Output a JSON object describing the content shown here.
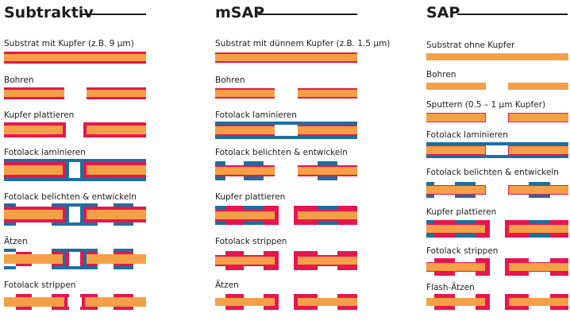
{
  "colors": {
    "copper": "#e6164f",
    "substrate": "#f5a047",
    "photoresist": "#1d6f9f",
    "text": "#1d1d1b"
  },
  "columns": [
    {
      "title": "Subtraktiv",
      "steps": [
        "Substrat mit Kupfer (z.B. 9 µm)",
        "Bohren",
        "Kupfer plattieren",
        "Fotolack laminieren",
        "Fotolack belichten & entwickeln",
        "Ätzen",
        "Fotolack strippen"
      ]
    },
    {
      "title": "mSAP",
      "steps": [
        "Substrat mit dünnem Kupfer (z.B. 1.5 µm)",
        "Bohren",
        "Fotolack laminieren",
        "Fotolack belichten & entwickeln",
        "Kupfer plattieren",
        "Fotolack strippen",
        "Ätzen"
      ]
    },
    {
      "title": "SAP",
      "steps": [
        "Substrat ohne Kupfer",
        "Bohren",
        "Sputtern (0.5 – 1 µm Kupfer)",
        "Fotolack laminieren",
        "Fotolack belichten & entwickeln",
        "Kupfer plattieren",
        "Fotolack strippen",
        "Flash-Ätzen"
      ]
    }
  ]
}
